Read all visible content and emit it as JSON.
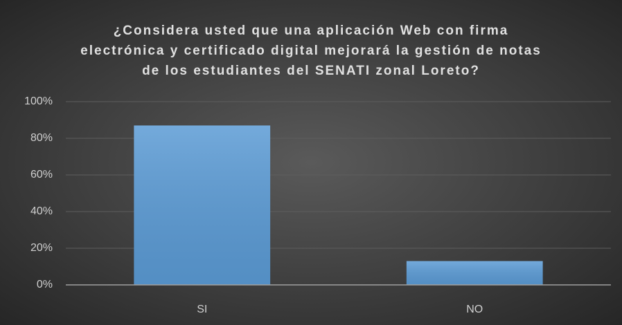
{
  "chart_data": {
    "type": "bar",
    "title": "¿Considera usted que una aplicación Web con firma electrónica y certificado digital mejorará la gestión de notas de los estudiantes del SENATI zonal Loreto?",
    "categories": [
      "SI",
      "NO"
    ],
    "values": [
      87,
      13
    ],
    "color": "#5b9bd5",
    "ylim": [
      0,
      100
    ],
    "yticks": [
      {
        "value": 0,
        "label": "0%"
      },
      {
        "value": 20,
        "label": "20%"
      },
      {
        "value": 40,
        "label": "40%"
      },
      {
        "value": 60,
        "label": "60%"
      },
      {
        "value": 80,
        "label": "80%"
      },
      {
        "value": 100,
        "label": "100%"
      }
    ],
    "grid": true
  }
}
